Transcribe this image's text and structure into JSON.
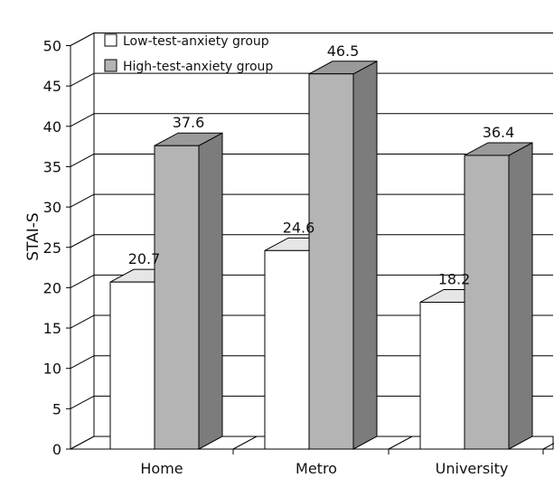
{
  "chart_data": {
    "type": "bar",
    "style": "3d-clustered",
    "categories": [
      "Home",
      "Metro",
      "University"
    ],
    "series": [
      {
        "name": "Low-test-anxiety group",
        "values": [
          20.7,
          24.6,
          18.2
        ],
        "color": "#ffffff"
      },
      {
        "name": "High-test-anxiety group",
        "values": [
          37.6,
          46.5,
          36.4
        ],
        "color": "#b4b4b4"
      }
    ],
    "data_labels": {
      "low": [
        "20.7",
        "24.6",
        "18.2"
      ],
      "high": [
        "37.6",
        "46.5",
        "36.4"
      ]
    },
    "title": "",
    "xlabel": "",
    "ylabel": "STAI-S",
    "ylim": [
      0,
      50
    ],
    "yticks": [
      0,
      5,
      10,
      15,
      20,
      25,
      30,
      35,
      40,
      45,
      50
    ],
    "ytick_labels": [
      "0",
      "5",
      "10",
      "15",
      "20",
      "25",
      "30",
      "35",
      "40",
      "45",
      "50"
    ],
    "grid": true,
    "legend_position": "top-left",
    "colors": {
      "low_front": "#ffffff",
      "low_top": "#e6e6e6",
      "low_side": "#f0f0f0",
      "high_front": "#b4b4b4",
      "high_top": "#9a9a9a",
      "high_side": "#7c7c7c",
      "gridline": "#000000"
    }
  }
}
